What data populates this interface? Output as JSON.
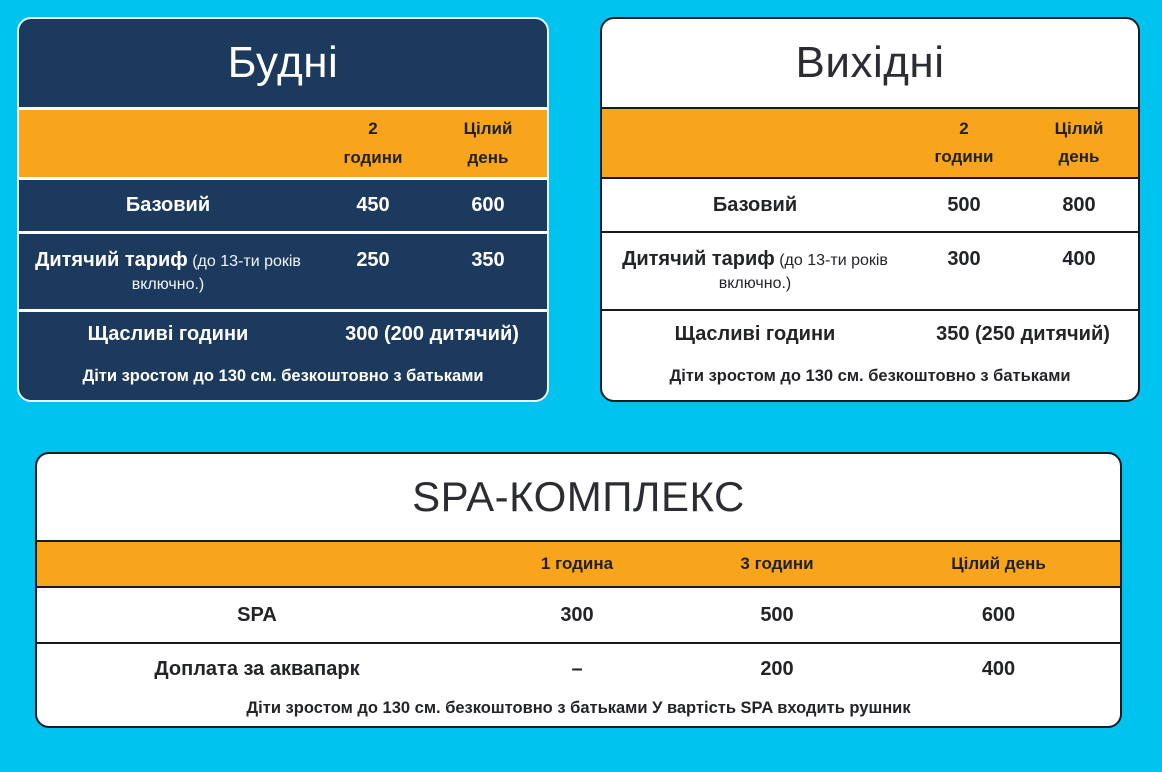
{
  "page": {
    "background_color": "#00c2ef"
  },
  "colors": {
    "navy": "#1c3a5e",
    "orange": "#f9a51b",
    "cyan": "#00c2ef",
    "dark_text": "#222428",
    "white": "#ffffff"
  },
  "cards": {
    "weekdays": {
      "title": "Будні",
      "column_headers": [
        "2\nгодини",
        "Цілий\nдень"
      ],
      "rows": {
        "basic": {
          "label": "Базовий",
          "values": [
            "450",
            "600"
          ]
        },
        "child": {
          "label_bold": "Дитячий тариф",
          "label_note": " (до 13-ти років включно.)",
          "values": [
            "250",
            "350"
          ]
        },
        "happy": {
          "label": "Щасливі години",
          "value": "300 (200 дитячий)"
        }
      },
      "footnote": "Діти зростом до 130 см. безкоштовно з батьками"
    },
    "weekends": {
      "title": "Вихідні",
      "column_headers": [
        "2\nгодини",
        "Цілий\nдень"
      ],
      "rows": {
        "basic": {
          "label": "Базовий",
          "values": [
            "500",
            "800"
          ]
        },
        "child": {
          "label_bold": "Дитячий тариф",
          "label_note": " (до 13-ти років включно.)",
          "values": [
            "300",
            "400"
          ]
        },
        "happy": {
          "label": "Щасливі години",
          "value": "350 (250 дитячий)"
        }
      },
      "footnote": "Діти зростом до 130 см. безкоштовно з батьками"
    },
    "spa": {
      "title": "SPA-КОМПЛЕКС",
      "column_headers": [
        "1 година",
        "3 години",
        "Цілий день"
      ],
      "rows": {
        "spa": {
          "label": "SPA",
          "values": [
            "300",
            "500",
            "600"
          ]
        },
        "aquapark": {
          "label": "Доплата за аквапарк",
          "values": [
            "–",
            "200",
            "400"
          ]
        }
      },
      "footnote": "Діти зростом до 130 см. безкоштовно з батьками У вартість SPA входить рушник"
    }
  }
}
